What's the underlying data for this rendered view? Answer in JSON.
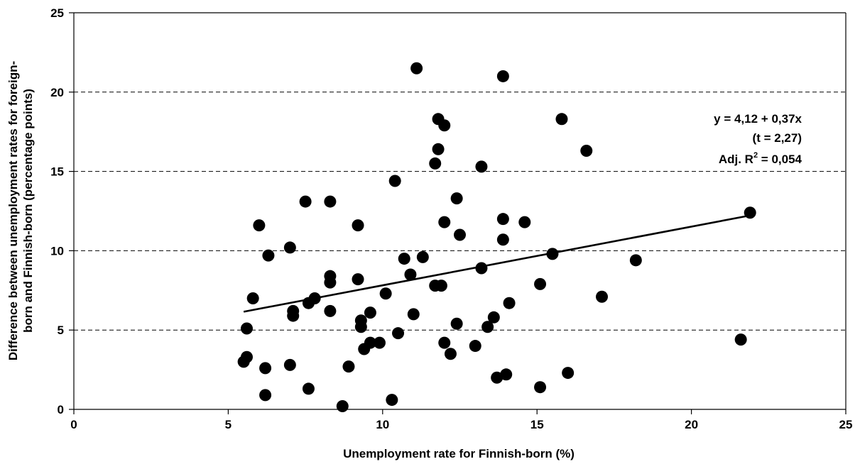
{
  "chart_data": {
    "type": "scatter",
    "xlabel": "Unemployment rate for Finnish-born (%)",
    "ylabel_lines": [
      "Difference between unemployment rates for foreign-",
      "born and Finnish-born (percentage points)"
    ],
    "xlim": [
      0,
      25
    ],
    "ylim": [
      0,
      25
    ],
    "x_ticks": [
      "0",
      "5",
      "10",
      "15",
      "20",
      "25"
    ],
    "y_ticks": [
      "0",
      "5",
      "10",
      "15",
      "20",
      "25"
    ],
    "grid": "horizontal dashed",
    "trendline": {
      "intercept": 4.12,
      "slope": 0.37,
      "x_from": 5.5,
      "x_to": 22.0
    },
    "annotation": {
      "line1": "y = 4,12 + 0,37x",
      "line2": "(t = 2,27)",
      "line3_prefix": "Adj. R",
      "line3_sup": "2",
      "line3_suffix": " = 0,054"
    },
    "points": [
      {
        "x": 5.5,
        "y": 3.0
      },
      {
        "x": 5.6,
        "y": 5.1
      },
      {
        "x": 5.6,
        "y": 3.3
      },
      {
        "x": 5.8,
        "y": 7.0
      },
      {
        "x": 6.0,
        "y": 11.6
      },
      {
        "x": 6.2,
        "y": 2.6
      },
      {
        "x": 6.2,
        "y": 0.9
      },
      {
        "x": 6.3,
        "y": 9.7
      },
      {
        "x": 7.0,
        "y": 10.2
      },
      {
        "x": 7.0,
        "y": 2.8
      },
      {
        "x": 7.1,
        "y": 6.2
      },
      {
        "x": 7.1,
        "y": 5.9
      },
      {
        "x": 7.5,
        "y": 13.1
      },
      {
        "x": 7.6,
        "y": 6.7
      },
      {
        "x": 7.6,
        "y": 1.3
      },
      {
        "x": 7.8,
        "y": 7.0
      },
      {
        "x": 8.3,
        "y": 13.1
      },
      {
        "x": 8.3,
        "y": 8.4
      },
      {
        "x": 8.3,
        "y": 8.0
      },
      {
        "x": 8.3,
        "y": 6.2
      },
      {
        "x": 8.7,
        "y": 0.2
      },
      {
        "x": 8.9,
        "y": 2.7
      },
      {
        "x": 9.2,
        "y": 11.6
      },
      {
        "x": 9.2,
        "y": 8.2
      },
      {
        "x": 9.3,
        "y": 5.6
      },
      {
        "x": 9.3,
        "y": 5.2
      },
      {
        "x": 9.4,
        "y": 3.8
      },
      {
        "x": 9.6,
        "y": 6.1
      },
      {
        "x": 9.6,
        "y": 4.2
      },
      {
        "x": 9.9,
        "y": 4.2
      },
      {
        "x": 10.1,
        "y": 7.3
      },
      {
        "x": 10.3,
        "y": 0.6
      },
      {
        "x": 10.4,
        "y": 14.4
      },
      {
        "x": 10.5,
        "y": 4.8
      },
      {
        "x": 10.7,
        "y": 9.5
      },
      {
        "x": 10.9,
        "y": 8.5
      },
      {
        "x": 11.0,
        "y": 6.0
      },
      {
        "x": 11.1,
        "y": 21.5
      },
      {
        "x": 11.3,
        "y": 9.6
      },
      {
        "x": 11.8,
        "y": 18.3
      },
      {
        "x": 11.8,
        "y": 16.4
      },
      {
        "x": 11.7,
        "y": 15.5
      },
      {
        "x": 11.7,
        "y": 7.8
      },
      {
        "x": 11.9,
        "y": 7.8
      },
      {
        "x": 12.0,
        "y": 17.9
      },
      {
        "x": 12.0,
        "y": 11.8
      },
      {
        "x": 12.0,
        "y": 4.2
      },
      {
        "x": 12.2,
        "y": 3.5
      },
      {
        "x": 12.4,
        "y": 13.3
      },
      {
        "x": 12.5,
        "y": 11.0
      },
      {
        "x": 12.4,
        "y": 5.4
      },
      {
        "x": 13.0,
        "y": 4.0
      },
      {
        "x": 13.2,
        "y": 15.3
      },
      {
        "x": 13.2,
        "y": 8.9
      },
      {
        "x": 13.4,
        "y": 5.2
      },
      {
        "x": 13.6,
        "y": 5.8
      },
      {
        "x": 13.7,
        "y": 2.0
      },
      {
        "x": 13.9,
        "y": 21.0
      },
      {
        "x": 13.9,
        "y": 12.0
      },
      {
        "x": 13.9,
        "y": 10.7
      },
      {
        "x": 14.1,
        "y": 6.7
      },
      {
        "x": 14.0,
        "y": 2.2
      },
      {
        "x": 14.6,
        "y": 11.8
      },
      {
        "x": 15.1,
        "y": 7.9
      },
      {
        "x": 15.1,
        "y": 1.4
      },
      {
        "x": 15.5,
        "y": 9.8
      },
      {
        "x": 15.8,
        "y": 18.3
      },
      {
        "x": 16.0,
        "y": 2.3
      },
      {
        "x": 16.6,
        "y": 16.3
      },
      {
        "x": 17.1,
        "y": 7.1
      },
      {
        "x": 18.2,
        "y": 9.4
      },
      {
        "x": 21.6,
        "y": 4.4
      },
      {
        "x": 21.9,
        "y": 12.4
      }
    ]
  }
}
